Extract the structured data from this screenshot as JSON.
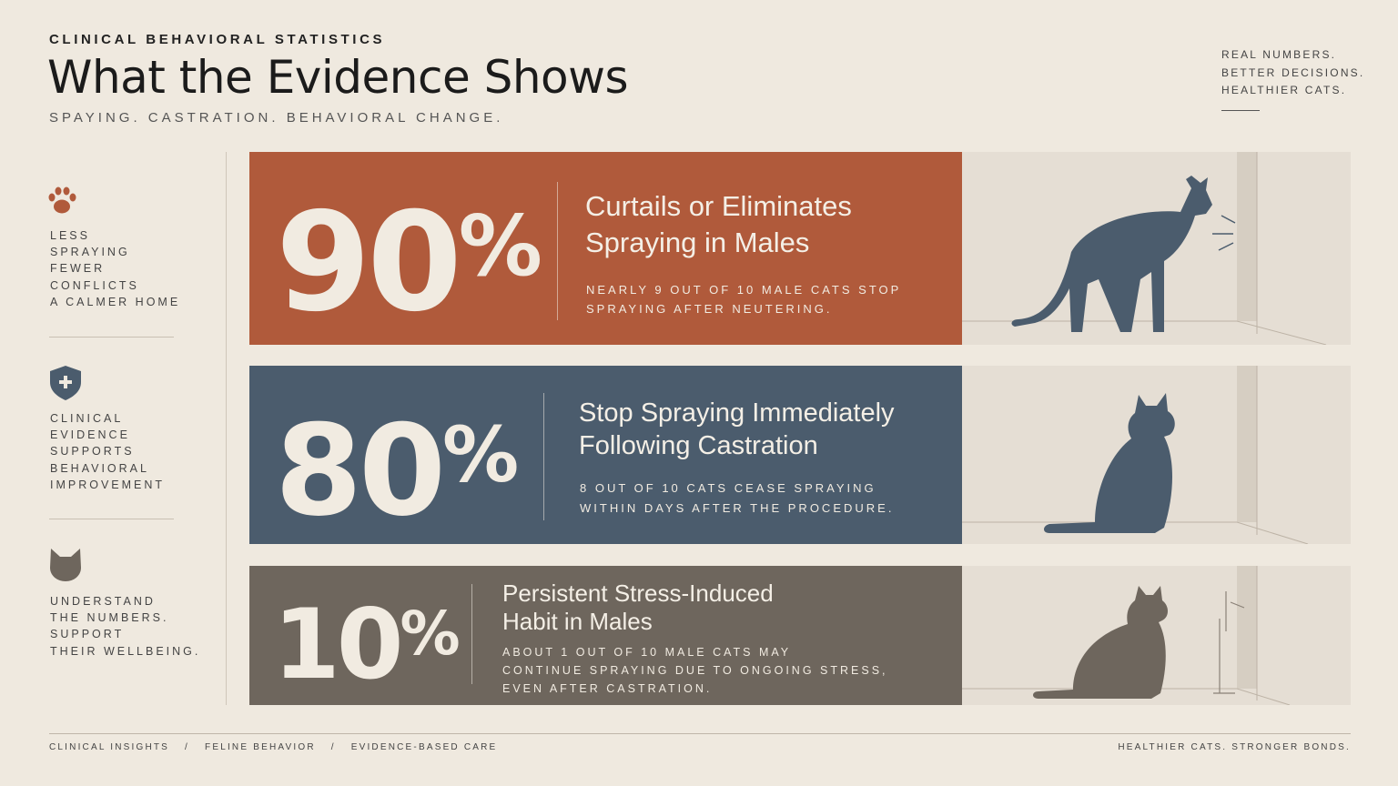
{
  "header": {
    "eyebrow": "CLINICAL BEHAVIORAL STATISTICS",
    "title": "What the Evidence Shows",
    "subtitle": "SPAYING. CASTRATION. BEHAVIORAL CHANGE."
  },
  "top_right": {
    "lines": [
      "REAL NUMBERS.",
      "BETTER DECISIONS.",
      "HEALTHIER CATS."
    ]
  },
  "sidebar": {
    "items": [
      {
        "lines": [
          "LESS",
          "SPRAYING",
          "FEWER",
          "CONFLICTS",
          "A CALMER HOME"
        ]
      },
      {
        "lines": [
          "CLINICAL",
          "EVIDENCE",
          "SUPPORTS",
          "BEHAVIORAL",
          "IMPROVEMENT"
        ]
      },
      {
        "lines": [
          "UNDERSTAND",
          "THE NUMBERS.",
          "SUPPORT",
          "THEIR WELLBEING."
        ]
      }
    ]
  },
  "cards": [
    {
      "stat": {
        "number": "90",
        "unit": "%"
      },
      "title_lines": [
        "Curtails or Eliminates",
        "Spraying in Males"
      ],
      "description_lines": [
        "NEARLY 9 OUT OF 10 MALE CATS STOP",
        "SPRAYING AFTER NEUTERING."
      ]
    },
    {
      "stat": {
        "number": "80",
        "unit": "%"
      },
      "title_lines": [
        "Stop Spraying Immediately",
        "Following Castration"
      ],
      "description_lines": [
        "8 OUT OF 10 CATS CEASE SPRAYING",
        "WITHIN DAYS AFTER THE PROCEDURE."
      ]
    },
    {
      "stat": {
        "number": "10",
        "unit": "%"
      },
      "title_lines": [
        "Persistent Stress-Induced",
        "Habit in Males"
      ],
      "description_lines": [
        "ABOUT 1 OUT OF 10 MALE CATS MAY",
        "CONTINUE SPRAYING DUE TO ONGOING STRESS,",
        "EVEN AFTER CASTRATION."
      ]
    }
  ],
  "footer": {
    "left": [
      "CLINICAL INSIGHTS",
      "FELINE BEHAVIOR",
      "EVIDENCE-BASED CARE"
    ],
    "separator": "/",
    "right": "HEALTHIER CATS. STRONGER BONDS."
  }
}
